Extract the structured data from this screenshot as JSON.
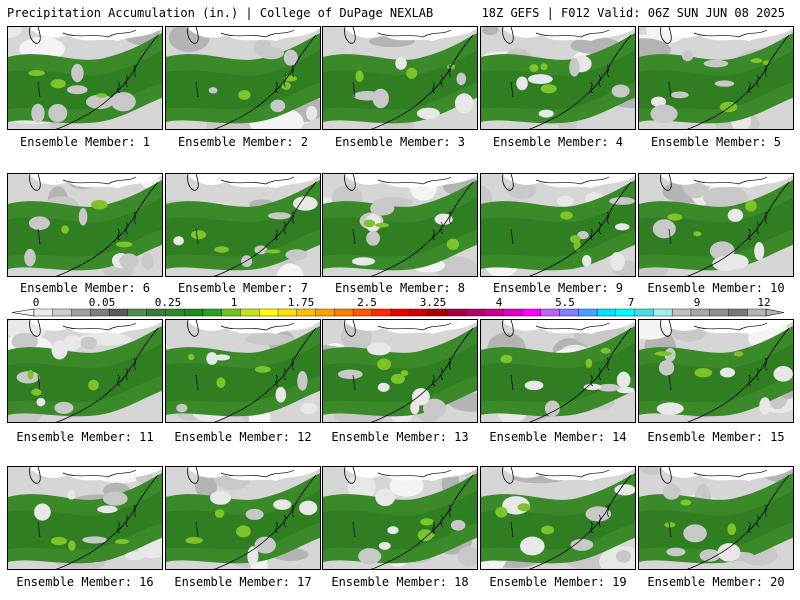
{
  "header": {
    "left": "Precipitation Accumulation (in.) | College of DuPage NEXLAB",
    "right": "18Z GEFS | F012 Valid: 06Z SUN JUN 08 2025"
  },
  "panels": [
    {
      "label": "Ensemble Member: 1"
    },
    {
      "label": "Ensemble Member: 2"
    },
    {
      "label": "Ensemble Member: 3"
    },
    {
      "label": "Ensemble Member: 4"
    },
    {
      "label": "Ensemble Member: 5"
    },
    {
      "label": "Ensemble Member: 6"
    },
    {
      "label": "Ensemble Member: 7"
    },
    {
      "label": "Ensemble Member: 8"
    },
    {
      "label": "Ensemble Member: 9"
    },
    {
      "label": "Ensemble Member: 10"
    },
    {
      "label": "Ensemble Member: 11"
    },
    {
      "label": "Ensemble Member: 12"
    },
    {
      "label": "Ensemble Member: 13"
    },
    {
      "label": "Ensemble Member: 14"
    },
    {
      "label": "Ensemble Member: 15"
    },
    {
      "label": "Ensemble Member: 16"
    },
    {
      "label": "Ensemble Member: 17"
    },
    {
      "label": "Ensemble Member: 18"
    },
    {
      "label": "Ensemble Member: 19"
    },
    {
      "label": "Ensemble Member: 20"
    }
  ],
  "colorbar": {
    "tick_labels": [
      "0",
      "0.05",
      "0.25",
      "1",
      "1.75",
      "2.5",
      "3.25",
      "4",
      "5.5",
      "7",
      "9",
      "12"
    ],
    "colors": [
      "#ebebeb",
      "#cccccc",
      "#a0a0a0",
      "#808080",
      "#5a5a5a",
      "#4f8e4f",
      "#3a7a3a",
      "#2c8a2c",
      "#1f8a1f",
      "#2aa02a",
      "#76c31f",
      "#c6e21f",
      "#ffff00",
      "#ffe000",
      "#ffc000",
      "#ffa000",
      "#ff8000",
      "#ff5a00",
      "#ff2a00",
      "#ee0000",
      "#cc0000",
      "#aa0000",
      "#a00040",
      "#b40064",
      "#c8008c",
      "#e000c8",
      "#ff00ff",
      "#c060ff",
      "#8080ff",
      "#4aa0ff",
      "#00e0ff",
      "#00ffff",
      "#40e0e0",
      "#a0f0f0",
      "#c0c0c0",
      "#a8a8a8",
      "#909090",
      "#787878",
      "#b4b4b4"
    ]
  }
}
